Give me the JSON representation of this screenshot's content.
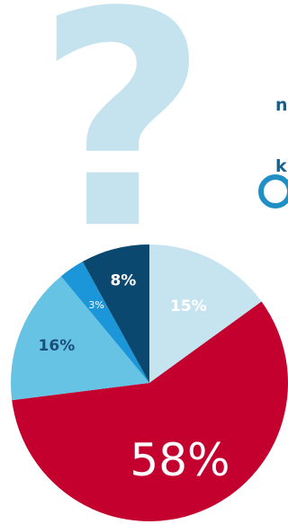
{
  "text_fragments": {
    "line1": "n",
    "line2": "k"
  },
  "chart_data": {
    "type": "pie",
    "slices": [
      {
        "label": "15%",
        "value": 15,
        "color": "#c6e4f0",
        "text_color": "#ffffff"
      },
      {
        "label": "58%",
        "value": 58,
        "color": "#c4002e",
        "text_color": "#ffffff"
      },
      {
        "label": "16%",
        "value": 16,
        "color": "#67c3e4",
        "text_color": "#1a4f78"
      },
      {
        "label": "3%",
        "value": 3,
        "color": "#1b96d8",
        "text_color": "#ffffff"
      },
      {
        "label": "8%",
        "value": 8,
        "color": "#0b4870",
        "text_color": "#ffffff"
      }
    ],
    "start": "top, clockwise"
  },
  "colors": {
    "question_mark": "#c4e3ef",
    "accent_text": "#1a5f89",
    "ring": "#1f8fc4"
  },
  "decoration": {
    "symbol": "?"
  }
}
